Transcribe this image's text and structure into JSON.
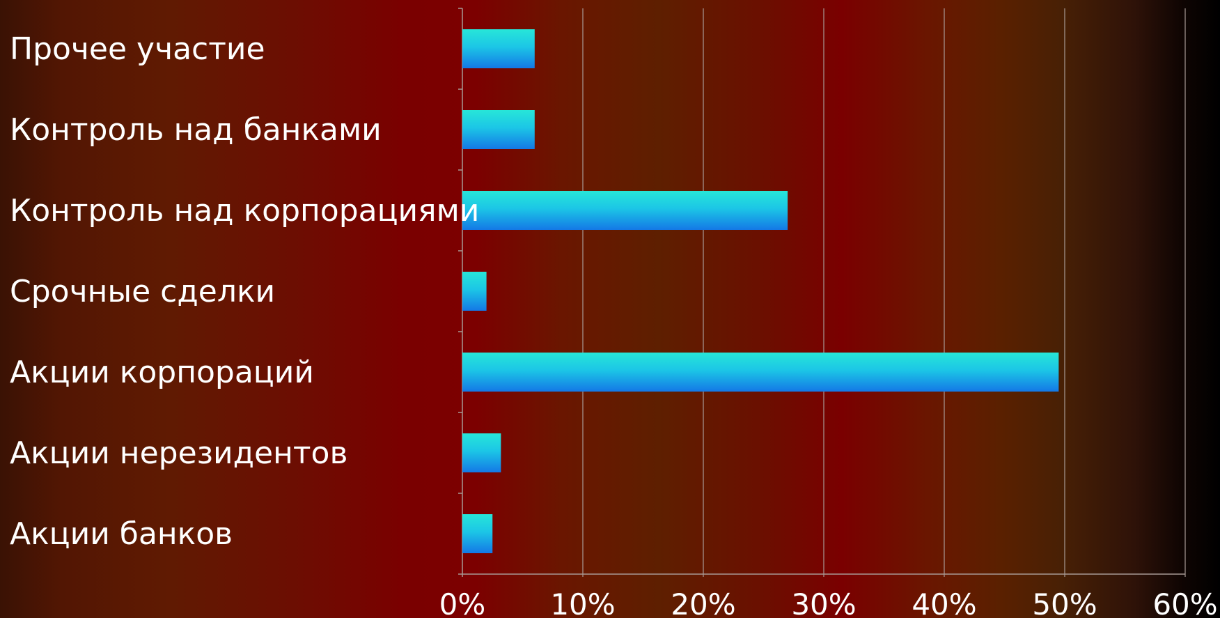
{
  "chart_data": {
    "type": "bar",
    "orientation": "horizontal",
    "categories": [
      "Прочее участие",
      "Контроль над банками",
      "Контроль над корпорациями",
      "Срочные сделки",
      "Акции корпораций",
      "Акции нерезидентов",
      "Акции банков"
    ],
    "values": [
      6,
      6,
      27,
      2,
      49.5,
      3.2,
      2.5
    ],
    "value_unit": "%",
    "xlim": [
      0,
      60
    ],
    "xticks": [
      "0%",
      "10%",
      "20%",
      "30%",
      "40%",
      "50%",
      "60%"
    ],
    "grid": true,
    "title": "",
    "xlabel": "",
    "ylabel": "",
    "bar_color_top": "#27e6d8",
    "bar_color_bottom": "#1483e8"
  }
}
